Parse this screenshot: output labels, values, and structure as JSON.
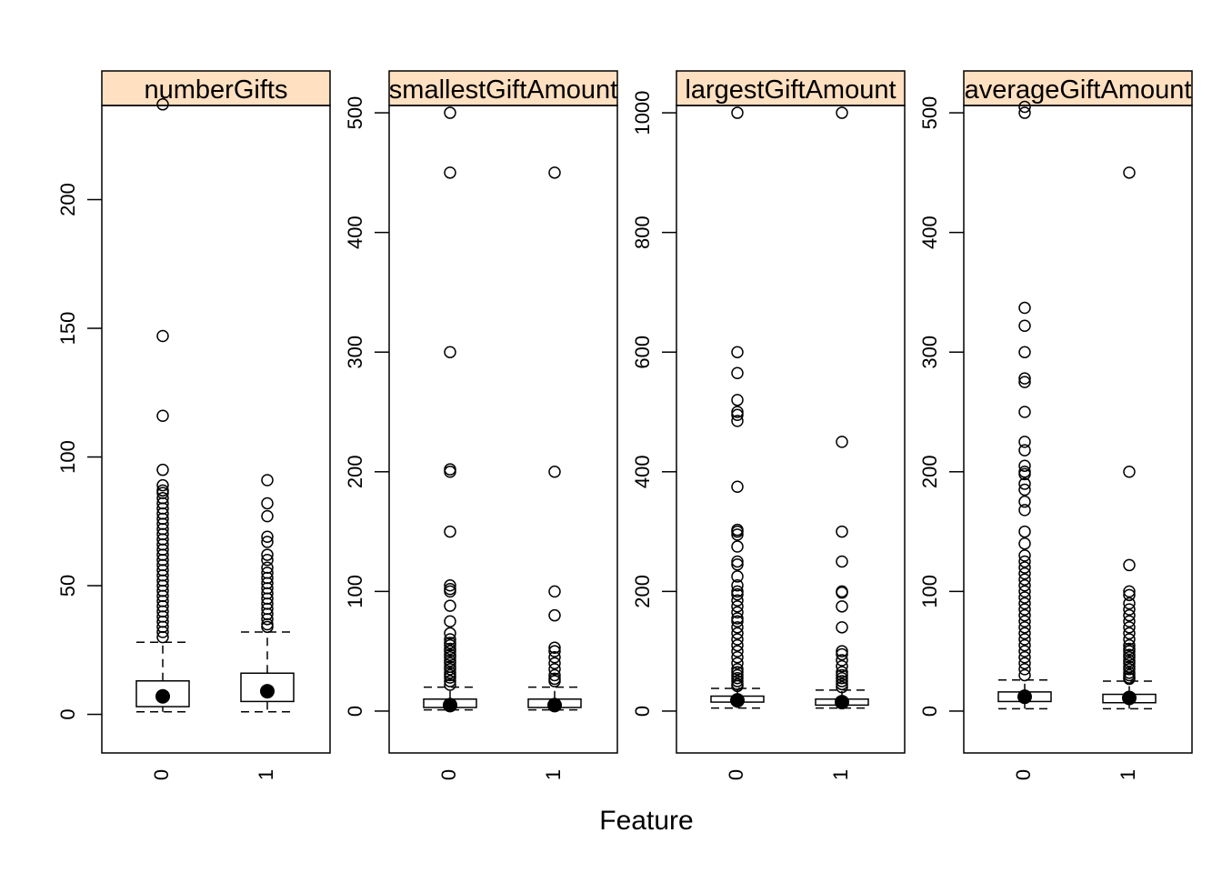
{
  "chart_data": {
    "type": "box",
    "xlabel": "Feature",
    "strip_color": "#FFE0C0",
    "panels": [
      {
        "title": "numberGifts",
        "ylim": [
          -15,
          250
        ],
        "yticks": [
          0,
          50,
          100,
          150,
          200
        ],
        "groups": [
          {
            "label": "0",
            "whisker_low": 1,
            "q1": 3,
            "median": 7,
            "q3": 13,
            "whisker_high": 28,
            "outliers": [
              237,
              147,
              116,
              95,
              89,
              87,
              86,
              84,
              82,
              80,
              78,
              76,
              74,
              72,
              70,
              68,
              66,
              64,
              62,
              60,
              58,
              56,
              54,
              52,
              50,
              48,
              46,
              44,
              42,
              40,
              38,
              36,
              34,
              32,
              30
            ]
          },
          {
            "label": "1",
            "whisker_low": 1,
            "q1": 5,
            "median": 9,
            "q3": 16,
            "whisker_high": 32,
            "outliers": [
              91,
              82,
              77,
              69,
              67,
              62,
              60,
              57,
              55,
              53,
              51,
              49,
              47,
              45,
              43,
              41,
              39,
              37,
              35,
              34
            ]
          }
        ]
      },
      {
        "title": "smallestGiftAmount",
        "ylim": [
          -35,
          535
        ],
        "yticks": [
          0,
          100,
          200,
          300,
          400,
          500
        ],
        "groups": [
          {
            "label": "0",
            "whisker_low": 1,
            "q1": 3,
            "median": 5,
            "q3": 10,
            "whisker_high": 20,
            "outliers": [
              500,
              450,
              300,
              202,
              200,
              150,
              105,
              102,
              100,
              88,
              75,
              65,
              60,
              57,
              55,
              52,
              50,
              47,
              45,
              42,
              40,
              37,
              35,
              32,
              30,
              28,
              25,
              22
            ]
          },
          {
            "label": "1",
            "whisker_low": 1,
            "q1": 3,
            "median": 5,
            "q3": 10,
            "whisker_high": 20,
            "outliers": [
              450,
              200,
              100,
              80,
              53,
              50,
              45,
              40,
              35,
              30,
              27,
              25
            ]
          }
        ]
      },
      {
        "title": "largestGiftAmount",
        "ylim": [
          -70,
          1070
        ],
        "yticks": [
          0,
          200,
          400,
          600,
          800,
          1000
        ],
        "groups": [
          {
            "label": "0",
            "whisker_low": 5,
            "q1": 15,
            "median": 18,
            "q3": 25,
            "whisker_high": 38,
            "outliers": [
              1000,
              600,
              565,
              520,
              500,
              495,
              485,
              375,
              303,
              300,
              295,
              275,
              250,
              245,
              225,
              210,
              200,
              195,
              185,
              175,
              165,
              155,
              150,
              140,
              130,
              120,
              110,
              100,
              90,
              80,
              70,
              65,
              60,
              55,
              50,
              45,
              42
            ]
          },
          {
            "label": "1",
            "whisker_low": 5,
            "q1": 10,
            "median": 15,
            "q3": 20,
            "whisker_high": 35,
            "outliers": [
              1000,
              450,
              300,
              250,
              200,
              198,
              175,
              140,
              100,
              95,
              85,
              75,
              65,
              60,
              55,
              50,
              45,
              40
            ]
          }
        ]
      },
      {
        "title": "averageGiftAmount",
        "ylim": [
          -35,
          535
        ],
        "yticks": [
          0,
          100,
          200,
          300,
          400,
          500
        ],
        "groups": [
          {
            "label": "0",
            "whisker_low": 2,
            "q1": 8,
            "median": 12,
            "q3": 16,
            "whisker_high": 26,
            "outliers": [
              505,
              500,
              337,
              322,
              300,
              278,
              275,
              250,
              225,
              218,
              205,
              200,
              198,
              190,
              185,
              175,
              168,
              150,
              140,
              130,
              125,
              120,
              115,
              110,
              105,
              100,
              95,
              90,
              85,
              80,
              75,
              70,
              65,
              60,
              55,
              50,
              45,
              40,
              35,
              30
            ]
          },
          {
            "label": "1",
            "whisker_low": 2,
            "q1": 7,
            "median": 11,
            "q3": 14,
            "whisker_high": 25,
            "outliers": [
              450,
              200,
              122,
              100,
              97,
              90,
              85,
              80,
              75,
              70,
              65,
              60,
              55,
              52,
              50,
              47,
              45,
              42,
              40,
              37,
              35,
              32,
              30,
              28,
              27
            ]
          }
        ]
      }
    ]
  }
}
